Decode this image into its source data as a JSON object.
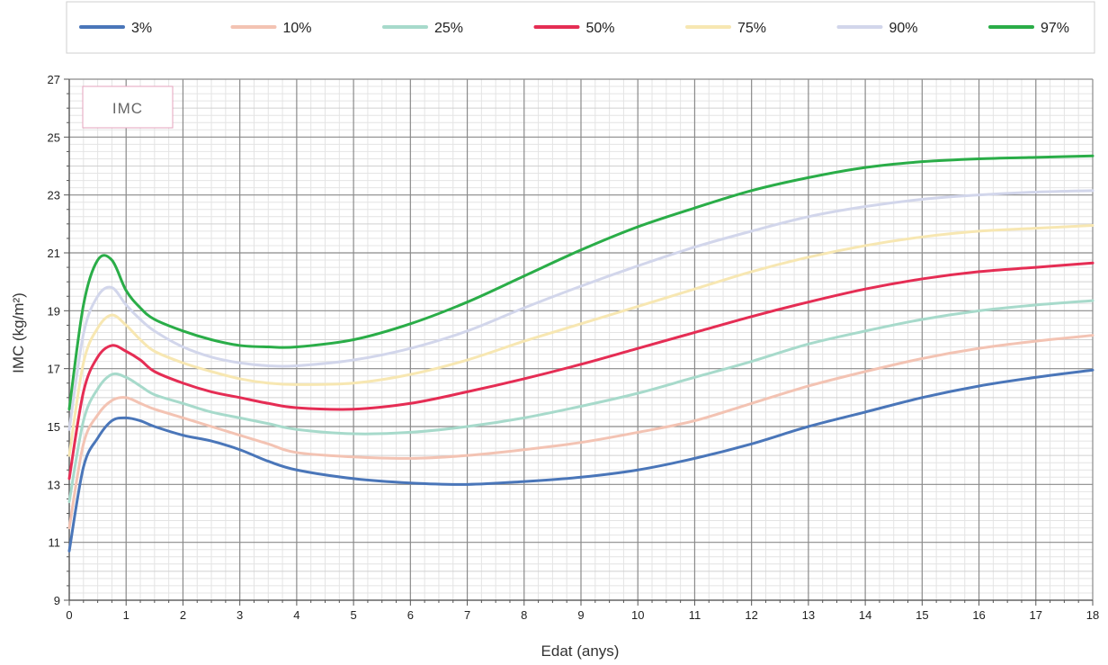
{
  "chart_data": {
    "type": "line",
    "title": "IMC",
    "xlabel": "Edat (anys)",
    "ylabel": "IMC (kg/m²)",
    "xlim": [
      0,
      18
    ],
    "ylim": [
      9,
      27
    ],
    "xticks": [
      0,
      1,
      2,
      3,
      4,
      5,
      6,
      7,
      8,
      9,
      10,
      11,
      12,
      13,
      14,
      15,
      16,
      17,
      18
    ],
    "yticks": [
      9,
      11,
      13,
      15,
      17,
      19,
      21,
      23,
      25,
      27
    ],
    "grid": true,
    "legend_position": "top",
    "series": [
      {
        "name": "3%",
        "color": "#4a76b9",
        "x": [
          0,
          0.25,
          0.5,
          0.75,
          1,
          1.25,
          1.5,
          2,
          2.5,
          3,
          3.5,
          4,
          5,
          6,
          7,
          8,
          9,
          10,
          11,
          12,
          13,
          14,
          15,
          16,
          17,
          18
        ],
        "y": [
          10.7,
          13.6,
          14.6,
          15.2,
          15.3,
          15.2,
          15.0,
          14.7,
          14.5,
          14.2,
          13.8,
          13.5,
          13.2,
          13.05,
          13.0,
          13.1,
          13.25,
          13.5,
          13.9,
          14.4,
          15.0,
          15.5,
          16.0,
          16.4,
          16.7,
          16.95
        ]
      },
      {
        "name": "10%",
        "color": "#f3c3b3",
        "x": [
          0,
          0.25,
          0.5,
          0.75,
          1,
          1.25,
          1.5,
          2,
          2.5,
          3,
          3.5,
          4,
          5,
          6,
          7,
          8,
          9,
          10,
          11,
          12,
          13,
          14,
          15,
          16,
          17,
          18
        ],
        "y": [
          11.5,
          14.4,
          15.4,
          15.9,
          16.0,
          15.8,
          15.6,
          15.3,
          15.0,
          14.7,
          14.4,
          14.1,
          13.95,
          13.9,
          14.0,
          14.2,
          14.45,
          14.8,
          15.2,
          15.8,
          16.4,
          16.9,
          17.35,
          17.7,
          17.95,
          18.15
        ]
      },
      {
        "name": "25%",
        "color": "#a7dacb",
        "x": [
          0,
          0.25,
          0.5,
          0.75,
          1,
          1.25,
          1.5,
          2,
          2.5,
          3,
          3.5,
          4,
          5,
          6,
          7,
          8,
          9,
          10,
          11,
          12,
          13,
          14,
          15,
          16,
          17,
          18
        ],
        "y": [
          12.4,
          15.2,
          16.3,
          16.8,
          16.7,
          16.4,
          16.1,
          15.8,
          15.5,
          15.3,
          15.1,
          14.9,
          14.75,
          14.8,
          15.0,
          15.3,
          15.7,
          16.15,
          16.7,
          17.25,
          17.85,
          18.3,
          18.7,
          19.0,
          19.2,
          19.35
        ]
      },
      {
        "name": "50%",
        "color": "#e52d54",
        "x": [
          0,
          0.25,
          0.5,
          0.75,
          1,
          1.25,
          1.5,
          2,
          2.5,
          3,
          3.5,
          4,
          5,
          6,
          7,
          8,
          9,
          10,
          11,
          12,
          13,
          14,
          15,
          16,
          17,
          18
        ],
        "y": [
          13.2,
          16.2,
          17.4,
          17.8,
          17.6,
          17.3,
          16.9,
          16.5,
          16.2,
          16.0,
          15.8,
          15.65,
          15.6,
          15.8,
          16.2,
          16.65,
          17.15,
          17.7,
          18.25,
          18.8,
          19.3,
          19.75,
          20.1,
          20.35,
          20.5,
          20.65
        ]
      },
      {
        "name": "75%",
        "color": "#f7e7b2",
        "x": [
          0,
          0.25,
          0.5,
          0.75,
          1,
          1.25,
          1.5,
          2,
          2.5,
          3,
          3.5,
          4,
          5,
          6,
          7,
          8,
          9,
          10,
          11,
          12,
          13,
          14,
          15,
          16,
          17,
          18
        ],
        "y": [
          14.0,
          17.2,
          18.4,
          18.85,
          18.5,
          18.0,
          17.6,
          17.2,
          16.9,
          16.65,
          16.5,
          16.45,
          16.5,
          16.8,
          17.3,
          17.95,
          18.55,
          19.15,
          19.75,
          20.35,
          20.85,
          21.25,
          21.55,
          21.75,
          21.85,
          21.95
        ]
      },
      {
        "name": "90%",
        "color": "#d2d6eb",
        "x": [
          0,
          0.25,
          0.5,
          0.75,
          1,
          1.25,
          1.5,
          2,
          2.5,
          3,
          3.5,
          4,
          5,
          6,
          7,
          8,
          9,
          10,
          11,
          12,
          13,
          14,
          15,
          16,
          17,
          18
        ],
        "y": [
          14.9,
          18.2,
          19.5,
          19.8,
          19.2,
          18.7,
          18.3,
          17.75,
          17.4,
          17.2,
          17.1,
          17.1,
          17.3,
          17.7,
          18.3,
          19.1,
          19.85,
          20.55,
          21.2,
          21.75,
          22.25,
          22.6,
          22.85,
          23.0,
          23.1,
          23.15
        ]
      },
      {
        "name": "97%",
        "color": "#2aad48",
        "x": [
          0,
          0.25,
          0.5,
          0.75,
          1,
          1.25,
          1.5,
          2,
          2.5,
          3,
          3.5,
          4,
          5,
          6,
          7,
          8,
          9,
          10,
          11,
          12,
          13,
          14,
          15,
          16,
          17,
          18
        ],
        "y": [
          15.6,
          19.2,
          20.75,
          20.75,
          19.7,
          19.1,
          18.7,
          18.3,
          18.0,
          17.8,
          17.75,
          17.75,
          18.0,
          18.55,
          19.3,
          20.2,
          21.1,
          21.9,
          22.55,
          23.15,
          23.6,
          23.95,
          24.15,
          24.25,
          24.3,
          24.35
        ]
      }
    ]
  }
}
